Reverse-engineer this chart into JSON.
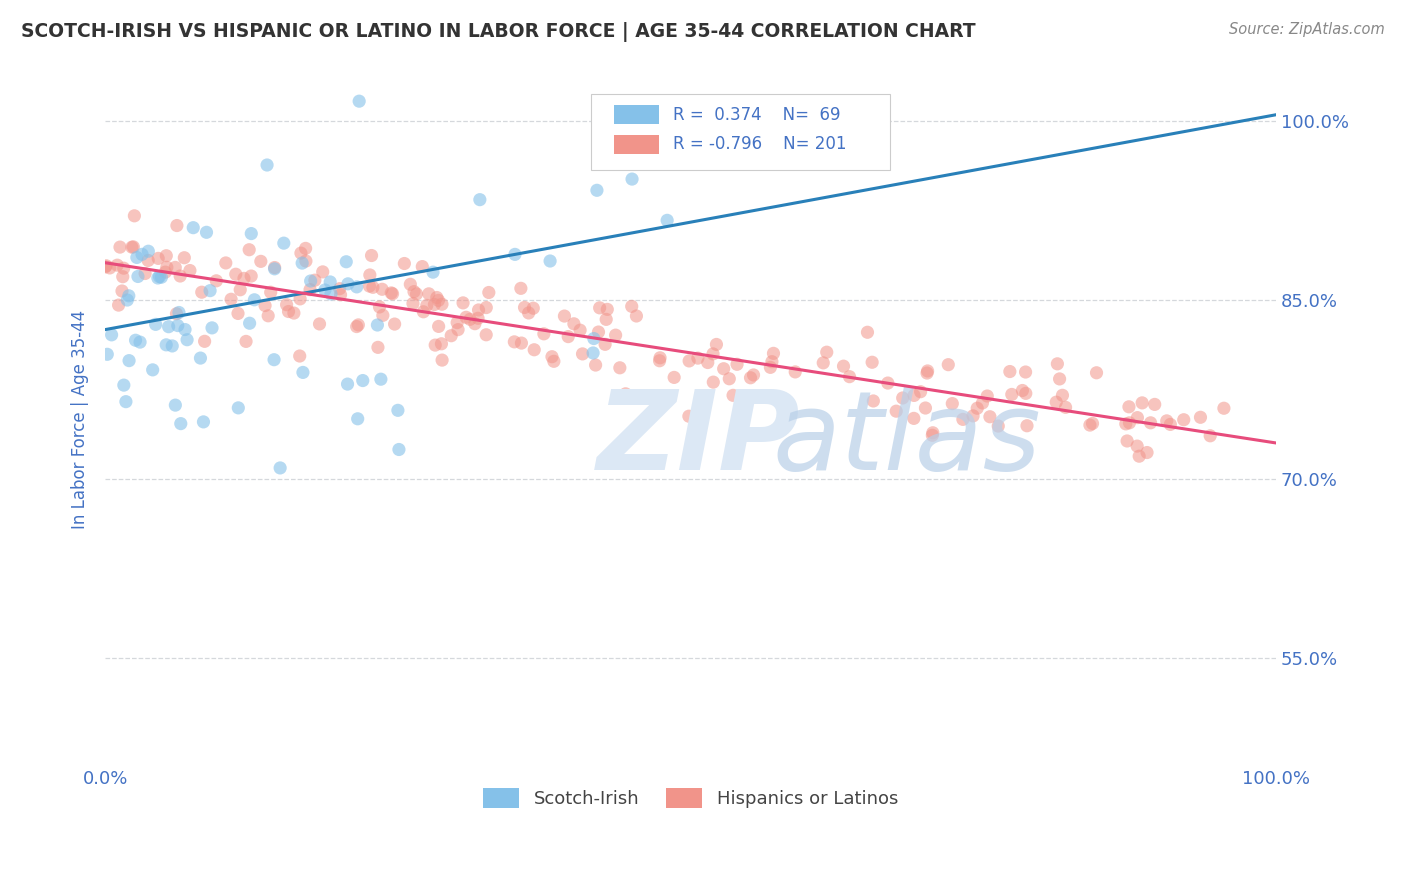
{
  "title": "SCOTCH-IRISH VS HISPANIC OR LATINO IN LABOR FORCE | AGE 35-44 CORRELATION CHART",
  "source_text": "Source: ZipAtlas.com",
  "ylabel_left": "In Labor Force | Age 35-44",
  "y_tick_values": [
    0.55,
    0.7,
    0.85,
    1.0
  ],
  "y_tick_labels": [
    "55.0%",
    "70.0%",
    "85.0%",
    "100.0%"
  ],
  "x_lim": [
    0.0,
    1.0
  ],
  "y_lim": [
    0.46,
    1.04
  ],
  "R_blue": 0.374,
  "N_blue": 69,
  "R_pink": -0.796,
  "N_pink": 201,
  "blue_color": "#85c1e9",
  "blue_line_color": "#2980b9",
  "pink_color": "#f1948a",
  "pink_line_color": "#e74c7c",
  "title_color": "#333333",
  "axis_label_color": "#4472c4",
  "background_color": "#ffffff",
  "grid_color": "#d5d8dc",
  "blue_line_x0": 0.0,
  "blue_line_y0": 0.825,
  "blue_line_x1": 1.0,
  "blue_line_y1": 1.005,
  "pink_line_x0": 0.0,
  "pink_line_y0": 0.881,
  "pink_line_x1": 1.0,
  "pink_line_y1": 0.73
}
